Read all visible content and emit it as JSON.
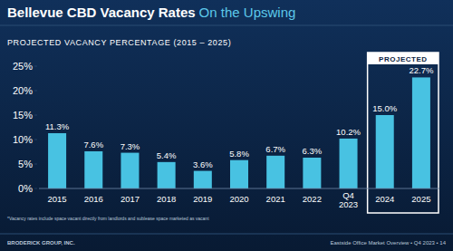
{
  "header": {
    "title": "Bellevue CBD Vacancy Rates",
    "title_accent": "On the Upswing"
  },
  "chart_data": {
    "type": "bar",
    "title": "PROJECTED VACANCY PERCENTAGE (2015 – 2025)",
    "categories": [
      "2015",
      "2016",
      "2017",
      "2018",
      "2019",
      "2020",
      "2021",
      "2022",
      "Q4 2023",
      "2024",
      "2025"
    ],
    "values": [
      11.3,
      7.6,
      7.3,
      5.4,
      3.6,
      5.8,
      6.7,
      6.3,
      10.2,
      15.0,
      22.7
    ],
    "value_labels": [
      "11.3%",
      "7.6%",
      "7.3%",
      "5.4%",
      "3.6%",
      "5.8%",
      "6.7%",
      "6.3%",
      "10.2%",
      "15.0%",
      "22.7%"
    ],
    "data_labels": true,
    "color": "#48c2e2",
    "ylim": [
      0,
      25
    ],
    "yticks": [
      {
        "value": 0,
        "label": "0%"
      },
      {
        "value": 5,
        "label": "5%"
      },
      {
        "value": 10,
        "label": "10%"
      },
      {
        "value": 15,
        "label": "15%"
      },
      {
        "value": 20,
        "label": "20%"
      },
      {
        "value": 25,
        "label": "25%"
      }
    ],
    "grid": false,
    "annotations": [
      {
        "text": "PROJECTED",
        "categories": [
          "2024",
          "2025"
        ]
      }
    ]
  },
  "footnote": "*Vacancy rates include space vacant directly from landlords and sublease space marketed as vacant",
  "footer": {
    "left": "BRODERICK GROUP, INC.",
    "right": "Eastside Office Market Overview • Q4 2023 • 14"
  }
}
